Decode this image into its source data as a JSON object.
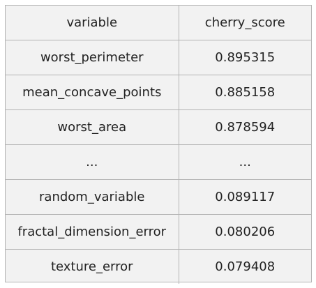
{
  "table": {
    "headers": [
      "variable",
      "cherry_score"
    ],
    "rows": [
      [
        "worst_perimeter",
        "0.895315"
      ],
      [
        "mean_concave_points",
        "0.885158"
      ],
      [
        "worst_area",
        "0.878594"
      ],
      [
        "...",
        "..."
      ],
      [
        "random_variable",
        "0.089117"
      ],
      [
        "fractal_dimension_error",
        "0.080206"
      ],
      [
        "texture_error",
        "0.079408"
      ]
    ]
  },
  "colors": {
    "cell_background": "#f2f2f2",
    "grid_line": "#b3b3b3",
    "text": "#222222"
  }
}
